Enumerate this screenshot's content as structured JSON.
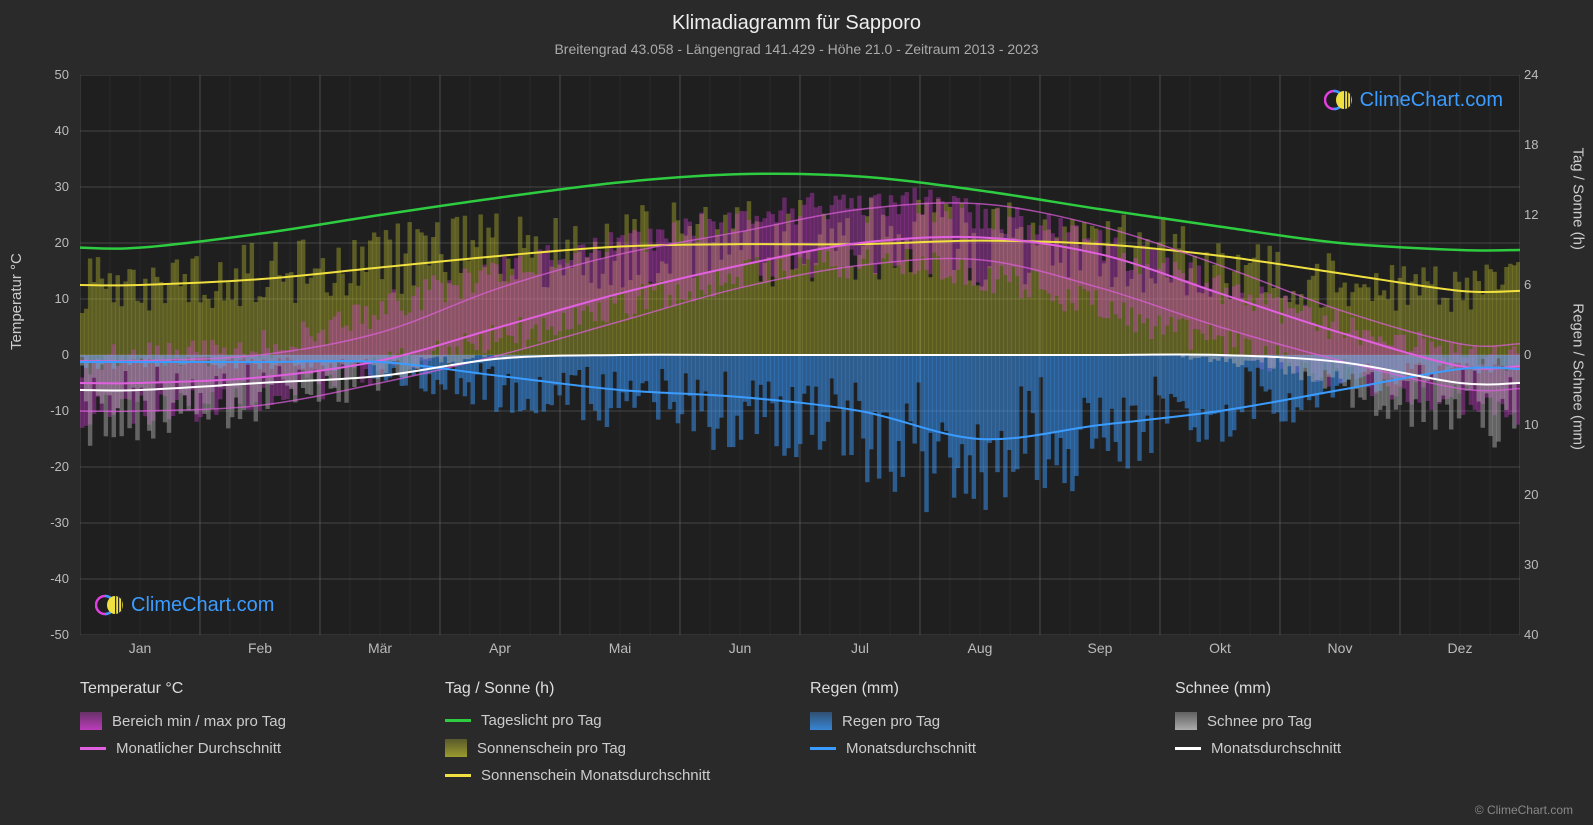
{
  "title": "Klimadiagramm für Sapporo",
  "subtitle": "Breitengrad 43.058 - Längengrad 141.429 - Höhe 21.0 - Zeitraum 2013 - 2023",
  "background_color": "#2a2a2a",
  "grid_color": "#555555",
  "plot_bg": "#1f1f1f",
  "text_color": "#cccccc",
  "axis_left": {
    "label": "Temperatur °C",
    "min": -50,
    "max": 50,
    "step": 10,
    "ticks": [
      50,
      40,
      30,
      20,
      10,
      0,
      -10,
      -20,
      -30,
      -40,
      -50
    ]
  },
  "axis_right_top": {
    "label": "Tag / Sonne (h)",
    "min": 0,
    "max": 24,
    "step": 6,
    "ticks": [
      24,
      18,
      12,
      6,
      0
    ]
  },
  "axis_right_bot": {
    "label": "Regen / Schnee (mm)",
    "min": 0,
    "max": 40,
    "step": 10,
    "ticks": [
      10,
      20,
      30,
      40
    ]
  },
  "months": [
    "Jan",
    "Feb",
    "Mär",
    "Apr",
    "Mai",
    "Jun",
    "Jul",
    "Aug",
    "Sep",
    "Okt",
    "Nov",
    "Dez"
  ],
  "series": {
    "daylight": {
      "color": "#2ecc40",
      "width": 2.5,
      "values_h": [
        9.2,
        10.4,
        12.0,
        13.5,
        14.8,
        15.5,
        15.3,
        14.1,
        12.5,
        11.0,
        9.6,
        9.0
      ]
    },
    "sunshine_avg": {
      "color": "#f0e040",
      "width": 2,
      "values_h": [
        6.0,
        6.5,
        7.5,
        8.5,
        9.3,
        9.5,
        9.5,
        9.8,
        9.5,
        8.5,
        7.0,
        5.5
      ]
    },
    "temp_avg": {
      "color": "#e060e0",
      "width": 2,
      "values_c": [
        -5,
        -4,
        -1,
        5,
        11,
        16,
        20,
        21,
        18,
        11,
        4,
        -2
      ]
    },
    "temp_min": {
      "color": "#e060e0",
      "values_c": [
        -10,
        -9,
        -5,
        0,
        6,
        12,
        16,
        17,
        12,
        5,
        -1,
        -6
      ]
    },
    "temp_max": {
      "color": "#e060e0",
      "values_c": [
        -1,
        0,
        4,
        12,
        18,
        22,
        26,
        27,
        23,
        16,
        8,
        2
      ]
    },
    "rain_avg": {
      "color": "#3b9cff",
      "width": 2,
      "values_mm": [
        1,
        1,
        1,
        3,
        5,
        6,
        8,
        12,
        10,
        8,
        5,
        2
      ]
    },
    "snow_avg": {
      "color": "#ffffff",
      "width": 2,
      "values_mm": [
        5,
        4,
        3,
        0.5,
        0,
        0,
        0,
        0,
        0,
        0,
        1,
        4
      ]
    },
    "sunshine_bars": {
      "color": "#b8b830",
      "opacity": 0.4
    },
    "temp_range_fill": {
      "color": "#e040e0",
      "opacity": 0.35
    },
    "rain_bars": {
      "color": "#3b9cff",
      "opacity": 0.5
    },
    "snow_bars": {
      "color": "#aaaaaa",
      "opacity": 0.5
    }
  },
  "legend": {
    "groups": [
      {
        "header": "Temperatur °C",
        "items": [
          {
            "type": "swatch",
            "color": "#e040e0",
            "label": "Bereich min / max pro Tag"
          },
          {
            "type": "line",
            "color": "#e060e0",
            "label": "Monatlicher Durchschnitt"
          }
        ]
      },
      {
        "header": "Tag / Sonne (h)",
        "items": [
          {
            "type": "line",
            "color": "#2ecc40",
            "label": "Tageslicht pro Tag"
          },
          {
            "type": "swatch",
            "color": "#b8b830",
            "label": "Sonnenschein pro Tag"
          },
          {
            "type": "line",
            "color": "#f0e040",
            "label": "Sonnenschein Monatsdurchschnitt"
          }
        ]
      },
      {
        "header": "Regen (mm)",
        "items": [
          {
            "type": "swatch",
            "color": "#3b9cff",
            "label": "Regen pro Tag"
          },
          {
            "type": "line",
            "color": "#3b9cff",
            "label": "Monatsdurchschnitt"
          }
        ]
      },
      {
        "header": "Schnee (mm)",
        "items": [
          {
            "type": "swatch",
            "color": "#cccccc",
            "label": "Schnee pro Tag"
          },
          {
            "type": "line",
            "color": "#ffffff",
            "label": "Monatsdurchschnitt"
          }
        ]
      }
    ]
  },
  "logo_text": "ClimeChart.com",
  "copyright": "© ClimeChart.com"
}
